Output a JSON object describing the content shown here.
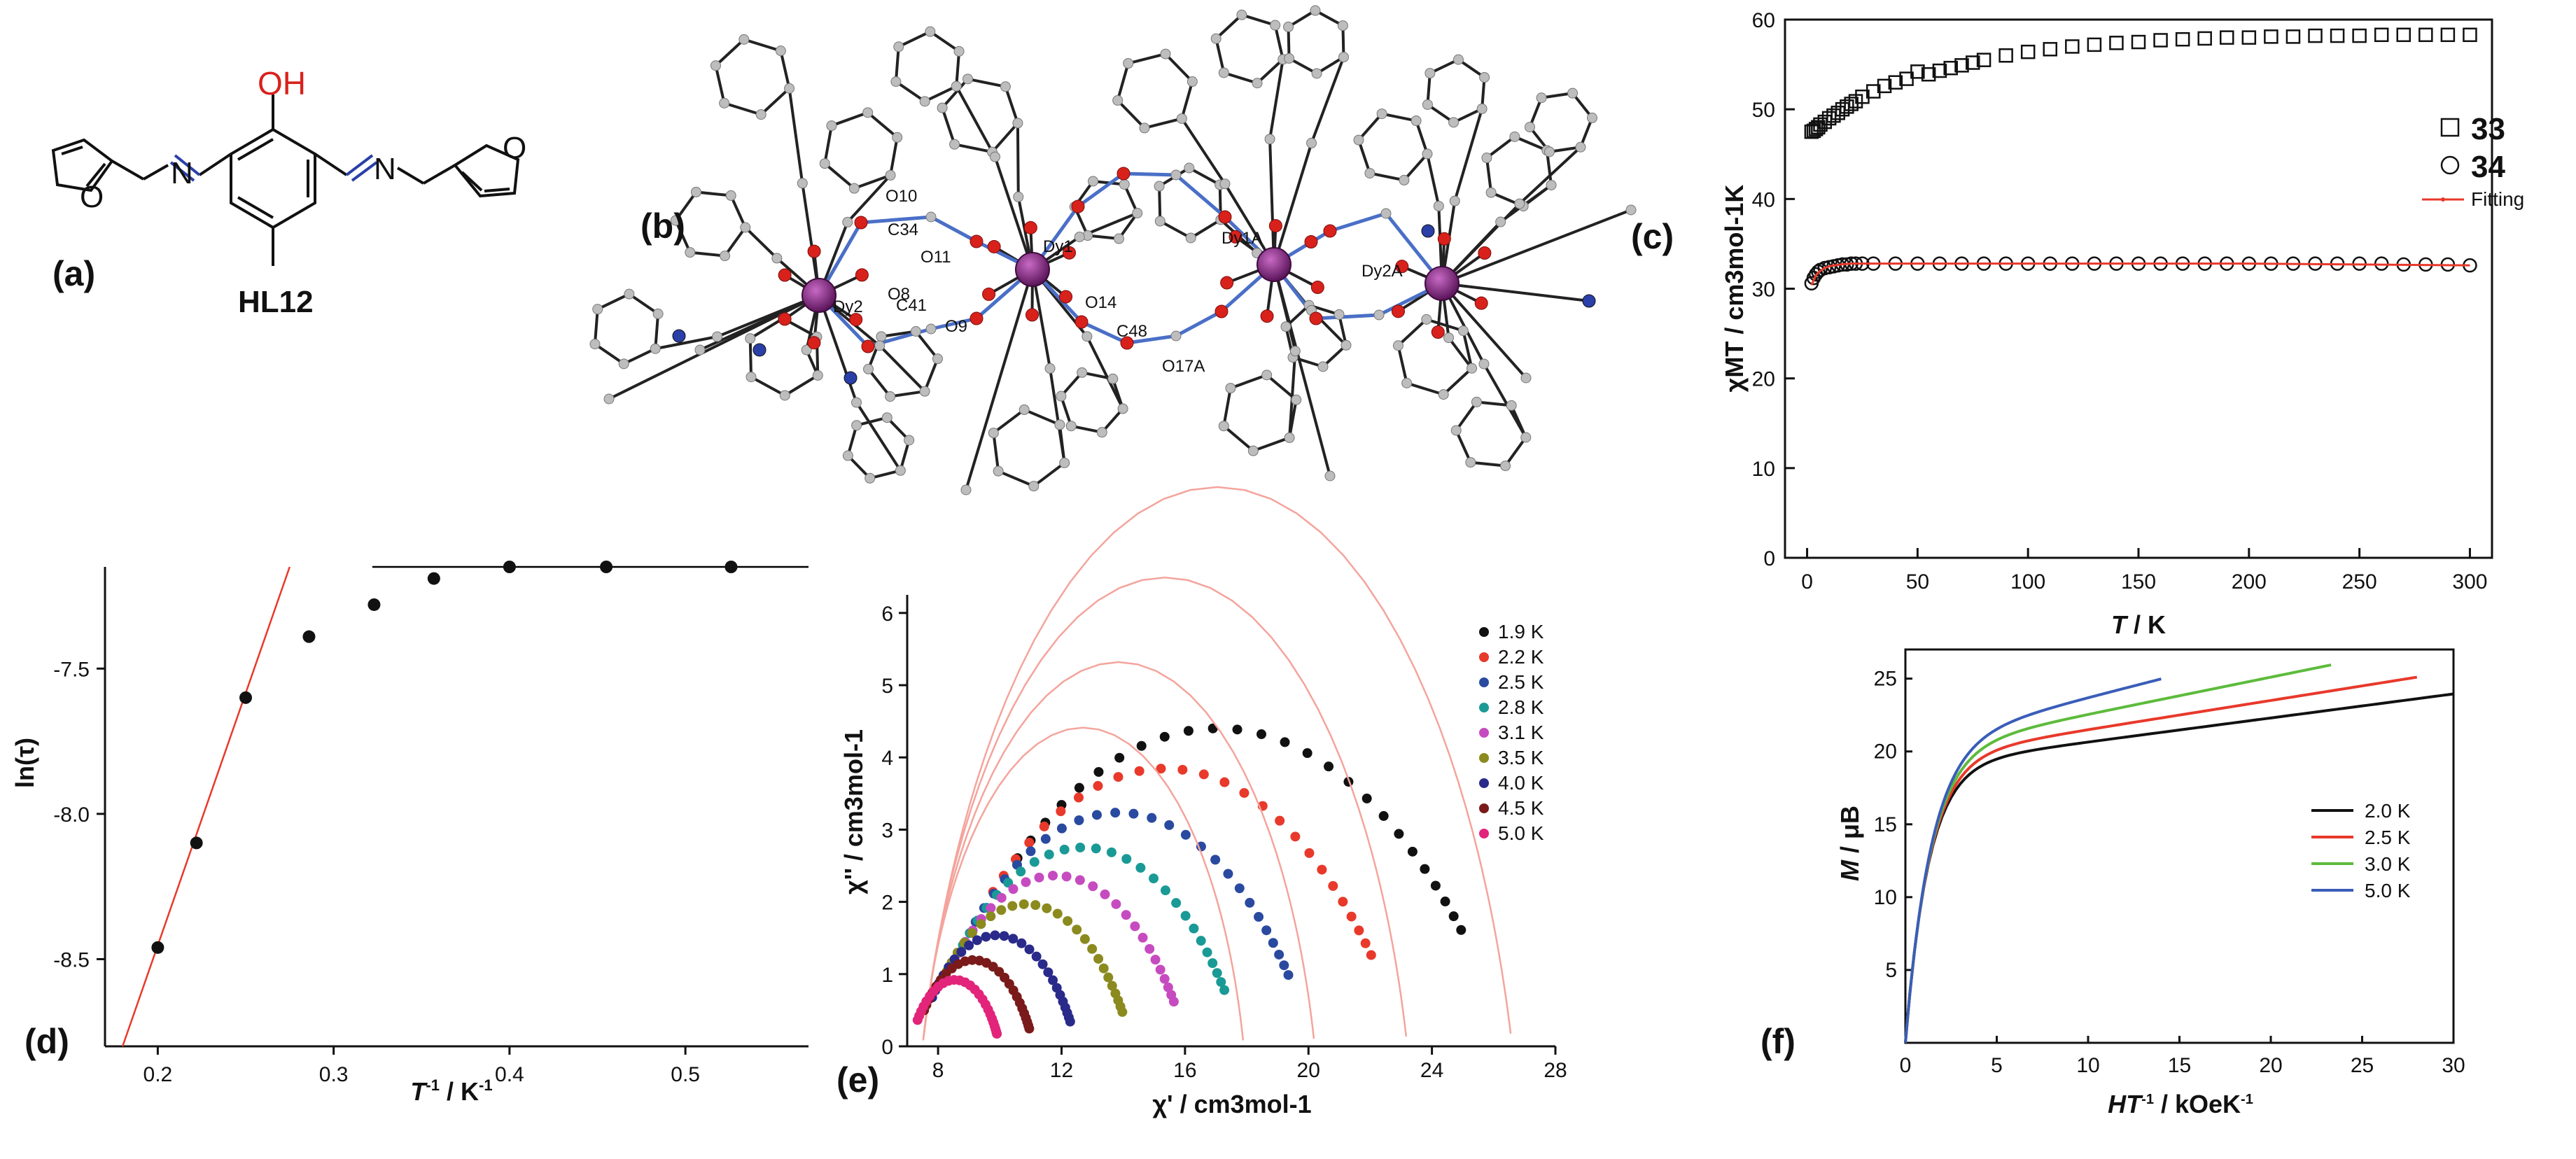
{
  "panels": {
    "a": {
      "label": "(a)",
      "compound": "HL12",
      "atoms": {
        "oh": "OH",
        "n1": "N",
        "n2": "N",
        "o1": "O",
        "o2": "O"
      }
    },
    "b": {
      "label": "(b)",
      "atom_labels": [
        "O10",
        "C34",
        "Dy2",
        "O11",
        "Dy1",
        "O8",
        "C41",
        "O9",
        "O14",
        "Dy1A",
        "C48",
        "O17A",
        "Dy2A"
      ]
    },
    "c": {
      "label": "(c)"
    },
    "d": {
      "label": "(d)"
    },
    "e": {
      "label": "(e)"
    },
    "f": {
      "label": "(f)"
    }
  },
  "colors": {
    "line": "#000000",
    "fit": "#e8392b",
    "fit_pale": "#f4a49c",
    "dy": "#7b1e7a",
    "oxygen": "#d9211c",
    "nitrogen": "#2a3fa8",
    "carbon": "#bdbdbd",
    "bridge": "#4a6fc7"
  },
  "chart_data": [
    {
      "id": "c",
      "type": "scatter",
      "xlabel_main": "T",
      "xlabel_unit": " / K",
      "ylabel": "χMT / cm3mol-1K",
      "xlim": [
        -10,
        310
      ],
      "ylim": [
        0,
        60
      ],
      "xticks": [
        0,
        50,
        100,
        150,
        200,
        250,
        300
      ],
      "yticks": [
        0,
        10,
        20,
        30,
        40,
        50,
        60
      ],
      "legend": [
        {
          "name": "33",
          "marker": "square"
        },
        {
          "name": "34",
          "marker": "circle"
        },
        {
          "name": "Fitting",
          "marker": "line"
        }
      ],
      "series": [
        {
          "name": "33",
          "marker": "square",
          "x": [
            2,
            3,
            4,
            5,
            6,
            8,
            10,
            12,
            14,
            16,
            18,
            20,
            22,
            25,
            30,
            35,
            40,
            45,
            50,
            55,
            60,
            65,
            70,
            75,
            80,
            90,
            100,
            110,
            120,
            130,
            140,
            150,
            160,
            170,
            180,
            190,
            200,
            210,
            220,
            230,
            240,
            250,
            260,
            270,
            280,
            290,
            300
          ],
          "y": [
            47.5,
            47.6,
            47.8,
            48.0,
            48.3,
            48.6,
            49.0,
            49.3,
            49.6,
            50.0,
            50.3,
            50.6,
            50.9,
            51.4,
            52.0,
            52.6,
            53.0,
            53.4,
            54.2,
            53.9,
            54.3,
            54.6,
            54.9,
            55.2,
            55.5,
            56.0,
            56.4,
            56.7,
            57.0,
            57.2,
            57.4,
            57.5,
            57.7,
            57.8,
            57.9,
            58.0,
            58.0,
            58.1,
            58.1,
            58.2,
            58.2,
            58.2,
            58.3,
            58.3,
            58.3,
            58.3,
            58.3
          ]
        },
        {
          "name": "34",
          "marker": "circle",
          "x": [
            2,
            3,
            4,
            5,
            6,
            8,
            10,
            12,
            14,
            16,
            18,
            20,
            22,
            25,
            30,
            40,
            50,
            60,
            70,
            80,
            90,
            100,
            110,
            120,
            130,
            140,
            150,
            160,
            170,
            180,
            190,
            200,
            210,
            220,
            230,
            240,
            250,
            260,
            270,
            280,
            290,
            300
          ],
          "y": [
            30.6,
            31.2,
            31.6,
            31.9,
            32.1,
            32.3,
            32.4,
            32.5,
            32.6,
            32.7,
            32.7,
            32.8,
            32.8,
            32.8,
            32.8,
            32.8,
            32.8,
            32.8,
            32.8,
            32.8,
            32.8,
            32.8,
            32.8,
            32.8,
            32.8,
            32.8,
            32.8,
            32.8,
            32.8,
            32.8,
            32.8,
            32.8,
            32.8,
            32.8,
            32.8,
            32.8,
            32.8,
            32.8,
            32.7,
            32.7,
            32.7,
            32.6
          ]
        },
        {
          "name": "Fitting",
          "marker": "line",
          "x": [
            2,
            4,
            6,
            8,
            10,
            15,
            20,
            30,
            50,
            100,
            150,
            200,
            250,
            300
          ],
          "y": [
            30.4,
            31.5,
            32.0,
            32.3,
            32.5,
            32.7,
            32.8,
            32.8,
            32.8,
            32.8,
            32.8,
            32.8,
            32.7,
            32.6
          ]
        }
      ]
    },
    {
      "id": "d",
      "type": "scatter",
      "xlabel_main": "T",
      "xlabel_sup": "-1",
      "xlabel_unit": " / K",
      "xlabel_unit_sup": "-1",
      "ylabel": "ln(τ)",
      "xlim": [
        0.17,
        0.57
      ],
      "ylim": [
        -8.8,
        -7.15
      ],
      "xticks": [
        0.2,
        0.3,
        0.4,
        0.5
      ],
      "yticks": [
        -8.5,
        -8.0,
        -7.5
      ],
      "xtick_labels": [
        "0.2",
        "0.3",
        "0.4",
        "0.5"
      ],
      "ytick_labels": [
        "-8.5",
        "-8.0",
        "-7.5"
      ],
      "series": [
        {
          "name": "data",
          "marker": "dot",
          "x": [
            0.2,
            0.222,
            0.25,
            0.286,
            0.323,
            0.357,
            0.4,
            0.455,
            0.526
          ],
          "y": [
            -8.46,
            -8.1,
            -7.6,
            -7.39,
            -7.28,
            -7.19,
            -7.15,
            -7.15,
            -7.15
          ]
        }
      ],
      "lines": [
        {
          "kind": "linear-fit",
          "color": "fit",
          "x": [
            0.18,
            0.275
          ],
          "y": [
            -8.8,
            -7.15
          ]
        },
        {
          "kind": "plateau",
          "color": "line",
          "x": [
            0.322,
            0.57
          ],
          "y": [
            -7.15,
            -7.15
          ]
        }
      ]
    },
    {
      "id": "e",
      "type": "scatter",
      "xlabel": "χ' / cm3mol-1",
      "ylabel": "χ'' / cm3mol-1",
      "xlim": [
        7,
        28
      ],
      "ylim": [
        0,
        6.25
      ],
      "xticks": [
        8,
        12,
        16,
        20,
        24,
        28
      ],
      "yticks": [
        0,
        1,
        2,
        3,
        4,
        5,
        6
      ],
      "series": [
        {
          "name": "1.9 K",
          "color": "#111111",
          "chiS": 7.5,
          "chiT": 26.6,
          "alpha": 0.45,
          "fit": true
        },
        {
          "name": "2.2 K",
          "color": "#e8392b",
          "chiS": 7.5,
          "chiT": 23.2,
          "alpha": 0.42,
          "fit": true
        },
        {
          "name": "2.5 K",
          "color": "#2a4aa0",
          "chiS": 7.5,
          "chiT": 20.2,
          "alpha": 0.4,
          "fit": true
        },
        {
          "name": "2.8 K",
          "color": "#1a9a96",
          "chiS": 7.5,
          "chiT": 17.9,
          "alpha": 0.38,
          "fit": true
        },
        {
          "name": "3.1 K",
          "color": "#c64bc0",
          "chiS": 7.5,
          "chiT": 16.1,
          "alpha": 0.36,
          "fit": false
        },
        {
          "name": "3.5 K",
          "color": "#8b8a1e",
          "chiS": 7.4,
          "chiT": 14.3,
          "alpha": 0.34,
          "fit": false
        },
        {
          "name": "4.0 K",
          "color": "#2a2a8a",
          "chiS": 7.3,
          "chiT": 12.5,
          "alpha": 0.32,
          "fit": false
        },
        {
          "name": "4.5 K",
          "color": "#7a1a1a",
          "chiS": 7.2,
          "chiT": 11.1,
          "alpha": 0.3,
          "fit": false
        },
        {
          "name": "5.0 K",
          "color": "#e2247a",
          "chiS": 7.1,
          "chiT": 10.0,
          "alpha": 0.28,
          "fit": false
        }
      ]
    },
    {
      "id": "f",
      "type": "line",
      "xlabel_main": "HT",
      "xlabel_sup": "-1",
      "xlabel_unit": " / kOeK",
      "xlabel_unit_sup": "-1",
      "ylabel_main": "M",
      "ylabel_unit": " / μB",
      "xlim": [
        0,
        30
      ],
      "ylim": [
        0,
        27
      ],
      "xticks": [
        0,
        5,
        10,
        15,
        20,
        25,
        30
      ],
      "yticks": [
        5,
        10,
        15,
        20,
        25
      ],
      "series": [
        {
          "name": "2.0 K",
          "color": "#111111",
          "Hmax": 30.0,
          "sat": 19.0,
          "b": 1.25,
          "slope": 0.165
        },
        {
          "name": "2.5 K",
          "color": "#e8392b",
          "Hmax": 28.0,
          "sat": 19.5,
          "b": 1.3,
          "slope": 0.2
        },
        {
          "name": "3.0 K",
          "color": "#5dbb3c",
          "Hmax": 23.3,
          "sat": 20.0,
          "b": 1.35,
          "slope": 0.255
        },
        {
          "name": "5.0 K",
          "color": "#3a5db8",
          "Hmax": 14.0,
          "sat": 20.5,
          "b": 1.4,
          "slope": 0.32
        }
      ]
    }
  ]
}
